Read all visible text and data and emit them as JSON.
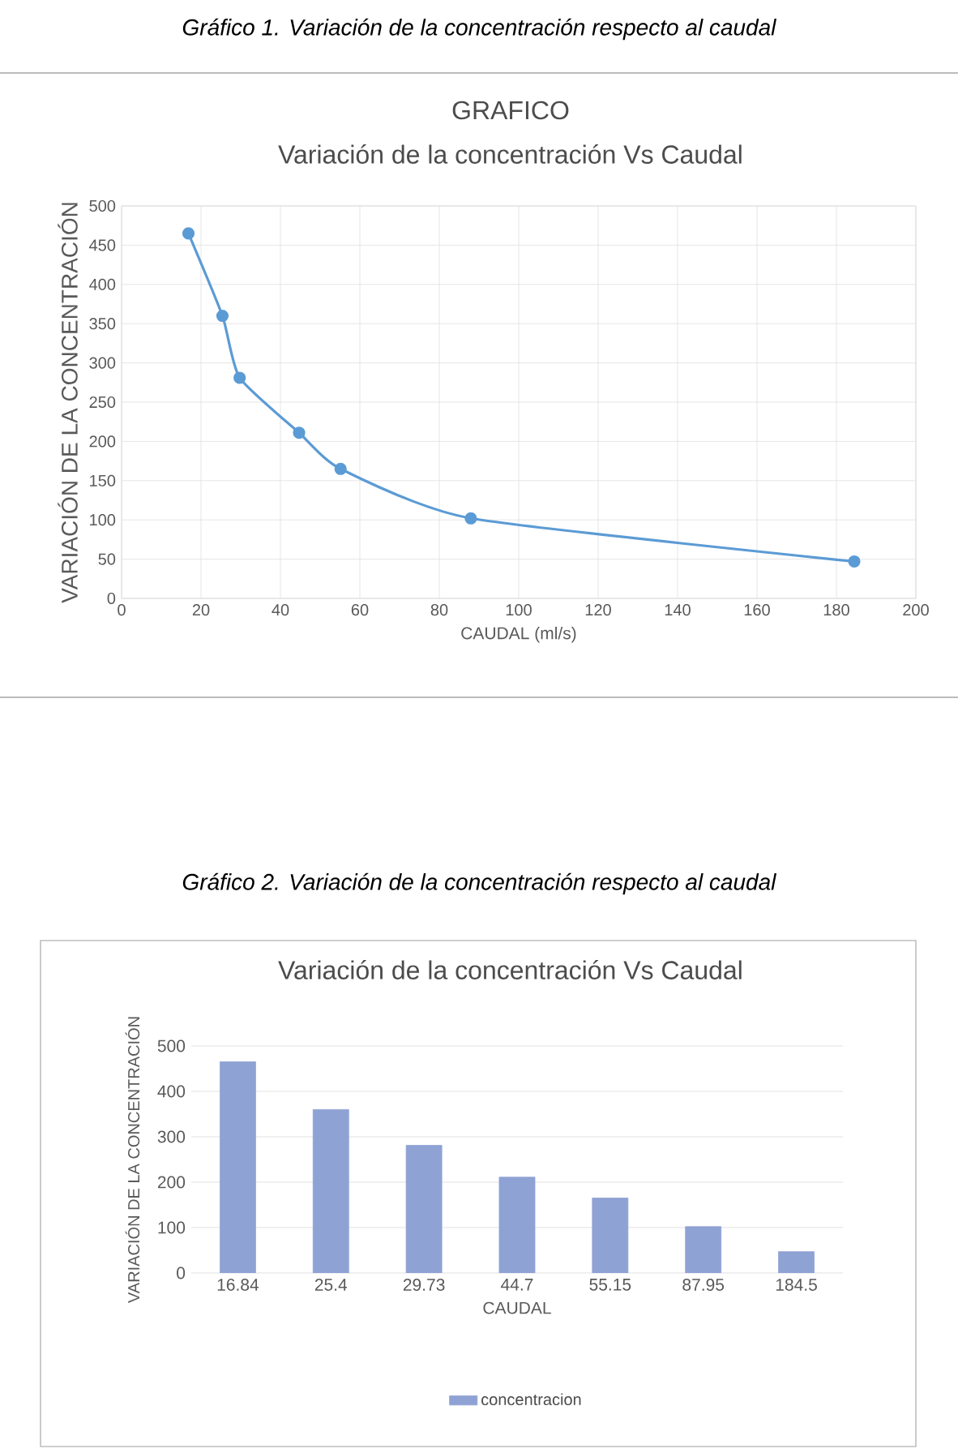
{
  "chart_data": [
    {
      "type": "line",
      "title": "GRAFICO",
      "subtitle": "Variación de la concentración Vs Caudal",
      "xlabel": "CAUDAL (ml/s)",
      "ylabel": "VARIACIÓN DE LA CONCENTRACIÓN",
      "annotations": [
        "Gráfico 1. Variación de la concentración respecto al caudal"
      ],
      "x": [
        16.84,
        25.4,
        29.73,
        44.7,
        55.15,
        87.95,
        184.5
      ],
      "series": [
        {
          "color": "#5b9bd5",
          "values": [
            465,
            360,
            281,
            211,
            165,
            102,
            47
          ]
        }
      ],
      "xlim": [
        0,
        200
      ],
      "xticks": [
        0,
        20,
        40,
        60,
        80,
        100,
        120,
        140,
        160,
        180,
        200
      ],
      "ylim": [
        0,
        500
      ],
      "yticks": [
        0,
        50,
        100,
        150,
        200,
        250,
        300,
        350,
        400,
        450,
        500
      ],
      "grid": true,
      "marker": "circle"
    },
    {
      "type": "bar",
      "title": "Variación de la concentración Vs Caudal",
      "xlabel": "CAUDAL",
      "ylabel": "VARIACIÓN DE LA CONCENTRACIÓN",
      "annotations": [
        "Gráfico 2. Variación de la concentración respecto al caudal"
      ],
      "categories": [
        "16.84",
        "25.4",
        "29.73",
        "44.7",
        "55.15",
        "87.95",
        "184.5"
      ],
      "series": [
        {
          "name": "concentracion",
          "color": "#8fa2d4",
          "values": [
            465,
            360,
            281,
            211,
            165,
            102,
            47
          ]
        }
      ],
      "ylim": [
        0,
        500
      ],
      "yticks": [
        0,
        100,
        200,
        300,
        400,
        500
      ],
      "grid": "y",
      "legend": "bottom"
    }
  ]
}
